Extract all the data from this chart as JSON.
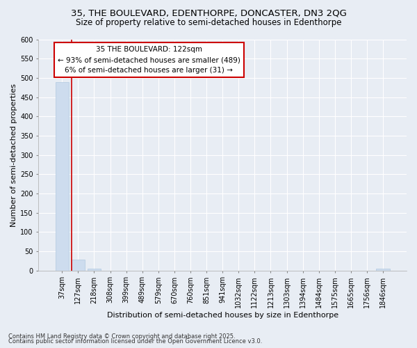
{
  "title1": "35, THE BOULEVARD, EDENTHORPE, DONCASTER, DN3 2QG",
  "title2": "Size of property relative to semi-detached houses in Edenthorpe",
  "xlabel": "Distribution of semi-detached houses by size in Edenthorpe",
  "ylabel": "Number of semi-detached properties",
  "categories": [
    "37sqm",
    "127sqm",
    "218sqm",
    "308sqm",
    "399sqm",
    "489sqm",
    "579sqm",
    "670sqm",
    "760sqm",
    "851sqm",
    "941sqm",
    "1032sqm",
    "1122sqm",
    "1213sqm",
    "1303sqm",
    "1394sqm",
    "1484sqm",
    "1575sqm",
    "1665sqm",
    "1756sqm",
    "1846sqm"
  ],
  "bar_values": [
    489,
    28,
    5,
    0,
    0,
    0,
    0,
    0,
    0,
    0,
    0,
    0,
    0,
    0,
    0,
    0,
    0,
    0,
    0,
    0,
    5
  ],
  "bar_color": "#cddcee",
  "bar_edge_color": "#b0c8e0",
  "vline_x_index": 1,
  "vline_color": "#cc0000",
  "ylim": [
    0,
    600
  ],
  "yticks": [
    0,
    50,
    100,
    150,
    200,
    250,
    300,
    350,
    400,
    450,
    500,
    550,
    600
  ],
  "annotation_title": "35 THE BOULEVARD: 122sqm",
  "annotation_line1": "← 93% of semi-detached houses are smaller (489)",
  "annotation_line2": "6% of semi-detached houses are larger (31) →",
  "annotation_box_edgecolor": "#cc0000",
  "annotation_facecolor": "#ffffff",
  "footnote1": "Contains HM Land Registry data © Crown copyright and database right 2025.",
  "footnote2": "Contains public sector information licensed under the Open Government Licence v3.0.",
  "bg_color": "#e8edf4",
  "plot_bg_color": "#e8edf4",
  "grid_color": "#ffffff",
  "title_fontsize": 9.5,
  "subtitle_fontsize": 8.5,
  "tick_fontsize": 7,
  "ylabel_fontsize": 8,
  "xlabel_fontsize": 8,
  "annotation_fontsize": 7.5,
  "footnote_fontsize": 6
}
